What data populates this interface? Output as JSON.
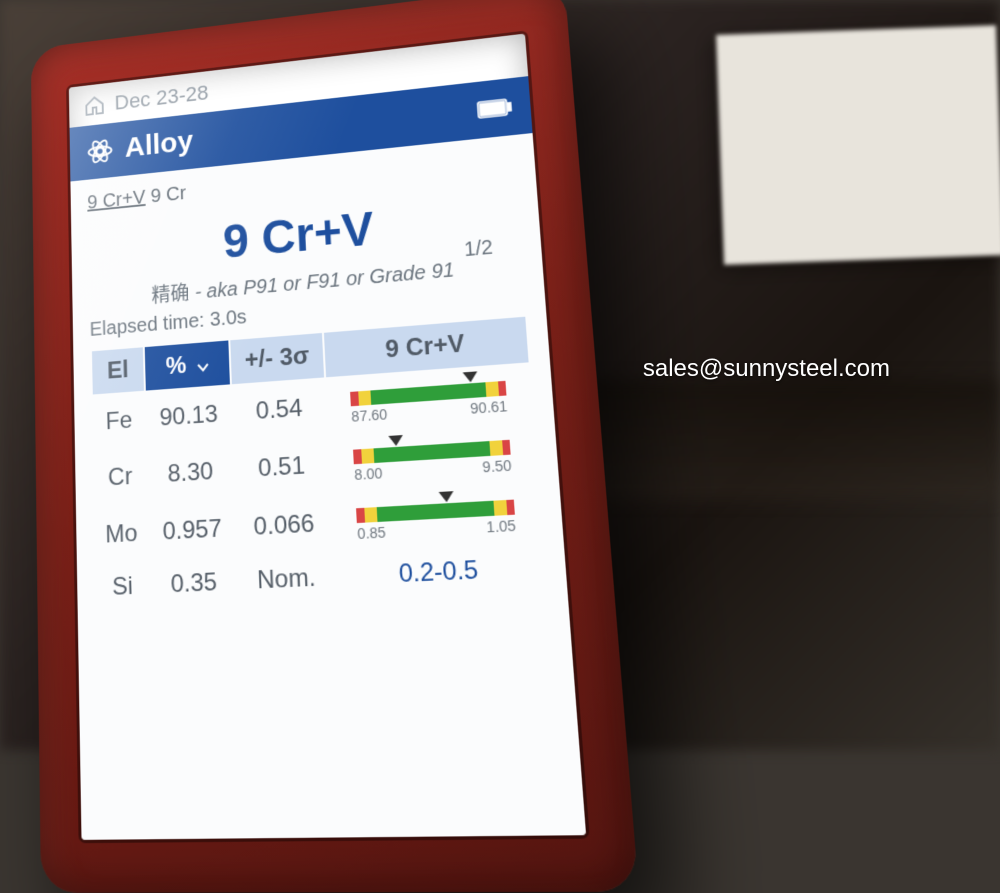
{
  "statusbar": {
    "date": "Dec 23-28"
  },
  "header": {
    "title": "Alloy",
    "bg_color": "#1e4f9e"
  },
  "tabs": {
    "active": "9 Cr+V",
    "inactive": "9 Cr"
  },
  "result": {
    "title": "9 Cr+V",
    "title_color": "#1e4f9e",
    "cn_prefix": "精确",
    "aka": " - aka P91 or F91 or Grade 91",
    "pagenum": "1/2",
    "elapsed": "Elapsed time: 3.0s"
  },
  "table": {
    "headers": {
      "el": "El",
      "pct": "%",
      "sigma": "+/- 3σ",
      "ref": "9 Cr+V",
      "el_bg": "#c9d9ef",
      "pct_bg": "#1e4f9e",
      "pct_color": "#ffffff",
      "sigma_bg": "#c9d9ef",
      "ref_bg": "#c9d9ef"
    },
    "rows": [
      {
        "el": "Fe",
        "pct": "90.13",
        "sigma": "0.54",
        "range": {
          "low": "87.60",
          "high": "90.61",
          "marker_pct": 78
        }
      },
      {
        "el": "Cr",
        "pct": "8.30",
        "sigma": "0.51",
        "range": {
          "low": "8.00",
          "high": "9.50",
          "marker_pct": 28
        }
      },
      {
        "el": "Mo",
        "pct": "0.957",
        "sigma": "0.066",
        "range": {
          "low": "0.85",
          "high": "1.05",
          "marker_pct": 58
        }
      },
      {
        "el": "Si",
        "pct": "0.35",
        "sigma": "Nom.",
        "nominal": "0.2-0.5"
      }
    ],
    "range_style": {
      "red_width_pct": 5,
      "yellow_width_pct": 8,
      "green_width_pct": 74,
      "red_color": "#d94545",
      "yellow_color": "#f1d23c",
      "green_color": "#2f9e3a"
    }
  },
  "watermark": "sales@sunnysteel.com"
}
